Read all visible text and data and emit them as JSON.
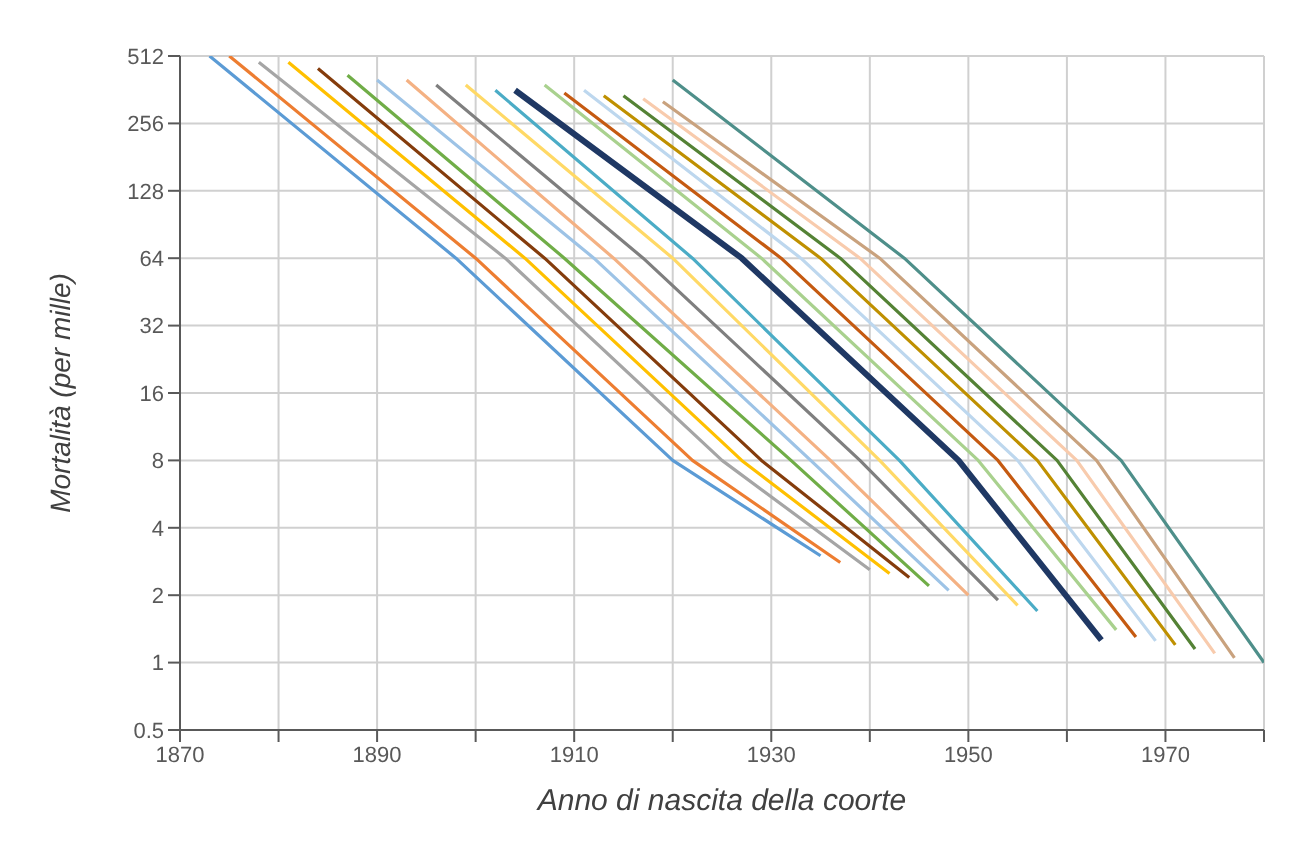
{
  "chart_data": {
    "type": "line",
    "xlabel": "Anno di nascita della coorte",
    "ylabel": "Mortalità (per mille)",
    "log": "y",
    "grid": true,
    "xlim": [
      1870,
      1980
    ],
    "xticks": [
      1870,
      {
        "value": 1880,
        "label": null
      },
      1890,
      {
        "value": 1900,
        "label": null
      },
      1910,
      {
        "value": 1920,
        "label": null
      },
      1930,
      {
        "value": 1940,
        "label": null
      },
      1950,
      {
        "value": 1960,
        "label": null
      },
      1970,
      {
        "value": 1980,
        "label": null
      }
    ],
    "ylim": [
      0.5,
      512
    ],
    "yticks": [
      0.5,
      1,
      2,
      4,
      8,
      16,
      32,
      64,
      128,
      256,
      512
    ],
    "series": [
      {
        "color": "#5b9bd5",
        "x": [
          1873,
          1898,
          1920,
          1935
        ],
        "values": [
          512,
          64,
          8,
          3
        ]
      },
      {
        "color": "#ed7d31",
        "x": [
          1875,
          1900,
          1922,
          1937
        ],
        "values": [
          512,
          64,
          8,
          2.8
        ]
      },
      {
        "color": "#a5a5a5",
        "x": [
          1878,
          1903,
          1925,
          1940
        ],
        "values": [
          480,
          64,
          8,
          2.6
        ]
      },
      {
        "color": "#ffc000",
        "x": [
          1881,
          1905,
          1927,
          1942
        ],
        "values": [
          480,
          64,
          8,
          2.5
        ]
      },
      {
        "color": "#843c0c",
        "x": [
          1884,
          1907,
          1929,
          1944
        ],
        "values": [
          450,
          64,
          8,
          2.4
        ]
      },
      {
        "color": "#70ad47",
        "x": [
          1887,
          1909,
          1932,
          1946
        ],
        "values": [
          420,
          64,
          8,
          2.2
        ]
      },
      {
        "color": "#9dc3e6",
        "x": [
          1890,
          1912,
          1934,
          1948
        ],
        "values": [
          400,
          64,
          8,
          2.1
        ]
      },
      {
        "color": "#f4b183",
        "x": [
          1893,
          1914,
          1936,
          1950
        ],
        "values": [
          400,
          64,
          8,
          2
        ]
      },
      {
        "color": "#7f7f7f",
        "x": [
          1896,
          1917,
          1939,
          1953
        ],
        "values": [
          380,
          64,
          8,
          1.9
        ]
      },
      {
        "color": "#ffd966",
        "x": [
          1899,
          1920,
          1941,
          1955
        ],
        "values": [
          380,
          64,
          8,
          1.8
        ]
      },
      {
        "color": "#4bacc6",
        "x": [
          1902,
          1922,
          1943,
          1957
        ],
        "values": [
          360,
          64,
          8,
          1.7
        ]
      },
      {
        "color": "#1f3864",
        "x": [
          1904,
          1927,
          1949,
          1963.5
        ],
        "values": [
          360,
          64,
          8,
          1.26
        ]
      },
      {
        "color": "#a9d18e",
        "x": [
          1907,
          1929,
          1951,
          1965
        ],
        "values": [
          380,
          64,
          8,
          1.4
        ]
      },
      {
        "color": "#c55a11",
        "x": [
          1909,
          1931,
          1953,
          1967
        ],
        "values": [
          350,
          64,
          8,
          1.3
        ]
      },
      {
        "color": "#bdd7ee",
        "x": [
          1911,
          1933,
          1955,
          1969
        ],
        "values": [
          360,
          64,
          8,
          1.25
        ]
      },
      {
        "color": "#bf9000",
        "x": [
          1913,
          1935,
          1957,
          1971
        ],
        "values": [
          340,
          64,
          8,
          1.2
        ]
      },
      {
        "color": "#548235",
        "x": [
          1915,
          1937,
          1959,
          1973
        ],
        "values": [
          340,
          64,
          8,
          1.15
        ]
      },
      {
        "color": "#f8cbad",
        "x": [
          1917,
          1939,
          1961,
          1975
        ],
        "values": [
          330,
          64,
          8,
          1.1
        ]
      },
      {
        "color": "#c9a27e",
        "x": [
          1919,
          1941,
          1963,
          1977
        ],
        "values": [
          320,
          64,
          8,
          1.05
        ]
      },
      {
        "color": "#4e8f8a",
        "x": [
          1920,
          1943.5,
          1965.5,
          1980
        ],
        "values": [
          400,
          64,
          8,
          1
        ]
      }
    ]
  }
}
